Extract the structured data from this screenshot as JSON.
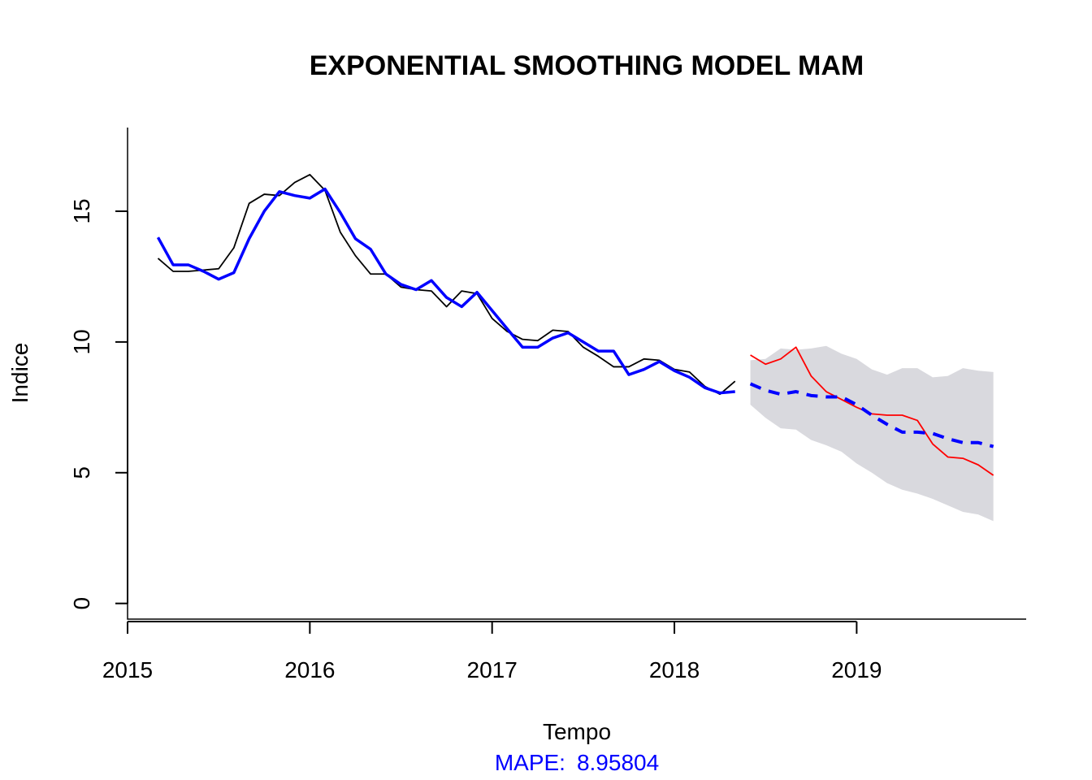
{
  "chart_data": {
    "type": "line",
    "title": "EXPONENTIAL SMOOTHING MODEL MAM",
    "xlabel": "Tempo",
    "ylabel": "Indice",
    "xlim": [
      2015,
      2019.93
    ],
    "ylim": [
      -0.6,
      18.2
    ],
    "x_ticks": [
      2015,
      2016,
      2017,
      2018,
      2019
    ],
    "y_ticks": [
      0,
      5,
      10,
      15
    ],
    "grid": false,
    "annotation": {
      "label": "MAPE:",
      "value": "8.95804",
      "color": "#0000FF"
    },
    "colors": {
      "observed": "#000000",
      "fitted": "#0000FF",
      "actual_test": "#FF0000",
      "forecast": "#0000FF",
      "interval": "#D9D9DE"
    },
    "series": [
      {
        "key": "observed",
        "x": [
          2015.167,
          2015.25,
          2015.333,
          2015.417,
          2015.5,
          2015.583,
          2015.667,
          2015.75,
          2015.833,
          2015.917,
          2016.0,
          2016.083,
          2016.167,
          2016.25,
          2016.333,
          2016.417,
          2016.5,
          2016.583,
          2016.667,
          2016.75,
          2016.833,
          2016.917,
          2017.0,
          2017.083,
          2017.167,
          2017.25,
          2017.333,
          2017.417,
          2017.5,
          2017.583,
          2017.667,
          2017.75,
          2017.833,
          2017.917,
          2018.0,
          2018.083,
          2018.167,
          2018.25,
          2018.333
        ],
        "values": [
          13.2,
          12.7,
          12.7,
          12.75,
          12.8,
          13.6,
          15.3,
          15.65,
          15.6,
          16.1,
          16.4,
          15.8,
          14.2,
          13.3,
          12.6,
          12.6,
          12.1,
          12.0,
          11.95,
          11.35,
          11.95,
          11.85,
          10.9,
          10.4,
          10.1,
          10.05,
          10.45,
          10.4,
          9.8,
          9.45,
          9.05,
          9.05,
          9.35,
          9.3,
          8.95,
          8.85,
          8.3,
          8.0,
          8.5
        ]
      },
      {
        "key": "fitted",
        "x": [
          2015.167,
          2015.25,
          2015.333,
          2015.417,
          2015.5,
          2015.583,
          2015.667,
          2015.75,
          2015.833,
          2015.917,
          2016.0,
          2016.083,
          2016.167,
          2016.25,
          2016.333,
          2016.417,
          2016.5,
          2016.583,
          2016.667,
          2016.75,
          2016.833,
          2016.917,
          2017.0,
          2017.083,
          2017.167,
          2017.25,
          2017.333,
          2017.417,
          2017.5,
          2017.583,
          2017.667,
          2017.75,
          2017.833,
          2017.917,
          2018.0,
          2018.083,
          2018.167,
          2018.25,
          2018.333
        ],
        "values": [
          14.0,
          12.95,
          12.95,
          12.7,
          12.4,
          12.65,
          13.95,
          15.0,
          15.75,
          15.6,
          15.5,
          15.85,
          14.95,
          13.95,
          13.55,
          12.6,
          12.2,
          12.0,
          12.35,
          11.7,
          11.35,
          11.9,
          11.2,
          10.5,
          9.8,
          9.8,
          10.15,
          10.35,
          10.0,
          9.65,
          9.65,
          8.75,
          8.95,
          9.25,
          8.9,
          8.65,
          8.25,
          8.05,
          8.1
        ]
      },
      {
        "key": "actual_test",
        "x": [
          2018.417,
          2018.5,
          2018.583,
          2018.667,
          2018.75,
          2018.833,
          2018.917,
          2019.0,
          2019.083,
          2019.167,
          2019.25,
          2019.333,
          2019.417,
          2019.5,
          2019.583,
          2019.667,
          2019.75
        ],
        "values": [
          9.5,
          9.15,
          9.35,
          9.8,
          8.7,
          8.1,
          7.8,
          7.5,
          7.25,
          7.2,
          7.2,
          7.0,
          6.1,
          5.6,
          5.55,
          5.3,
          4.9
        ]
      },
      {
        "key": "forecast",
        "x": [
          2018.417,
          2018.5,
          2018.583,
          2018.667,
          2018.75,
          2018.833,
          2018.917,
          2019.0,
          2019.083,
          2019.167,
          2019.25,
          2019.333,
          2019.417,
          2019.5,
          2019.583,
          2019.667,
          2019.75
        ],
        "values": [
          8.4,
          8.15,
          8.0,
          8.1,
          7.95,
          7.9,
          7.9,
          7.6,
          7.2,
          6.85,
          6.55,
          6.55,
          6.5,
          6.3,
          6.15,
          6.15,
          6.0
        ]
      }
    ],
    "interval": {
      "x": [
        2018.417,
        2018.5,
        2018.583,
        2018.667,
        2018.75,
        2018.833,
        2018.917,
        2019.0,
        2019.083,
        2019.167,
        2019.25,
        2019.333,
        2019.417,
        2019.5,
        2019.583,
        2019.667,
        2019.75
      ],
      "lower": [
        7.6,
        7.1,
        6.7,
        6.65,
        6.25,
        6.05,
        5.8,
        5.35,
        5.0,
        4.6,
        4.35,
        4.2,
        4.0,
        3.75,
        3.5,
        3.4,
        3.15
      ],
      "upper": [
        9.3,
        9.35,
        9.75,
        9.7,
        9.75,
        9.85,
        9.55,
        9.35,
        8.95,
        8.75,
        9.0,
        9.0,
        8.65,
        8.7,
        9.0,
        8.9,
        8.85
      ]
    }
  }
}
